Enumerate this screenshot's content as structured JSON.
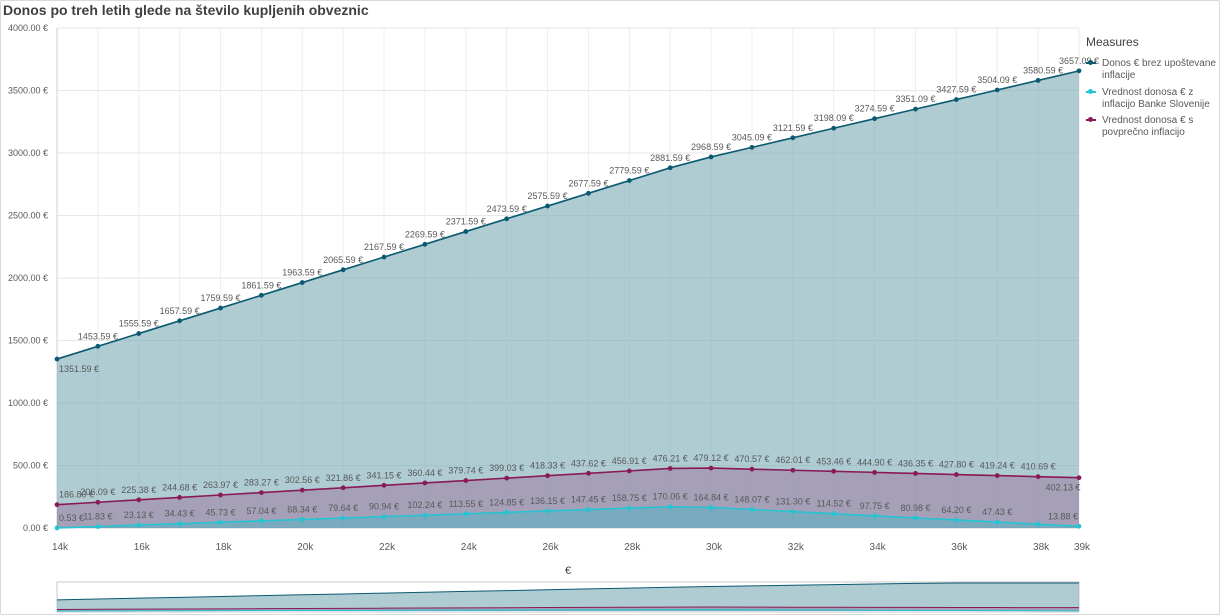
{
  "title": "Donos po treh letih glede na število kupljenih obveznic",
  "legend": {
    "title": "Measures",
    "items": [
      {
        "label": "Donos € brez upoštevane inflacije",
        "color": "#0b5a72"
      },
      {
        "label": "Vrednost donosa € z inflacijo Banke Slovenije",
        "color": "#26c4d3"
      },
      {
        "label": "Vrednost donosa € s povprečno inflacijo",
        "color": "#8a1a55"
      }
    ]
  },
  "chart_data": {
    "type": "area",
    "title": "Donos po treh letih glede na število kupljenih obveznic",
    "xlabel": "€",
    "ylabel": "",
    "xlim": [
      14000,
      39000
    ],
    "ylim": [
      0,
      4000
    ],
    "x_tick_labels": [
      "14k",
      "16k",
      "18k",
      "20k",
      "22k",
      "24k",
      "26k",
      "28k",
      "30k",
      "32k",
      "34k",
      "36k",
      "38k",
      "39k"
    ],
    "y_tick_labels": [
      "0.00 €",
      "500.00 €",
      "1000.00 €",
      "1500.00 €",
      "2000.00 €",
      "2500.00 €",
      "3000.00 €",
      "3500.00 €",
      "4000.00 €"
    ],
    "grid": true,
    "legend_position": "right",
    "x": [
      14000,
      15000,
      16000,
      17000,
      18000,
      19000,
      20000,
      21000,
      22000,
      23000,
      24000,
      25000,
      26000,
      27000,
      28000,
      29000,
      30000,
      31000,
      32000,
      33000,
      34000,
      35000,
      36000,
      37000,
      38000,
      39000
    ],
    "series": [
      {
        "name": "Donos € brez upoštevane inflacije",
        "color": "#0b5a72",
        "values": [
          1351.59,
          1453.59,
          1555.59,
          1657.59,
          1759.59,
          1861.59,
          1963.59,
          2065.59,
          2167.59,
          2269.59,
          2371.59,
          2473.59,
          2575.59,
          2677.59,
          2779.59,
          2881.59,
          2968.59,
          3045.09,
          3121.59,
          3198.09,
          3274.59,
          3351.09,
          3427.59,
          3504.09,
          3580.59,
          3657.09
        ],
        "labels": [
          "1351.59 €",
          "1453.59 €",
          "1555.59 €",
          "1657.59 €",
          "1759.59 €",
          "1861.59 €",
          "1963.59 €",
          "2065.59 €",
          "2167.59 €",
          "2269.59 €",
          "2371.59 €",
          "2473.59 €",
          "2575.59 €",
          "2677.59 €",
          "2779.59 €",
          "2881.59 €",
          "2968.59 €",
          "3045.09 €",
          "3121.59 €",
          "3198.09 €",
          "3274.59 €",
          "3351.09 €",
          "3427.59 €",
          "3504.09 €",
          "3580.59 €",
          "3657.09 €"
        ]
      },
      {
        "name": "Vrednost donosa € s povprečno inflacijo",
        "color": "#8a1a55",
        "values": [
          186.8,
          206.09,
          225.38,
          244.68,
          263.97,
          283.27,
          302.56,
          321.86,
          341.15,
          360.44,
          379.74,
          399.03,
          418.33,
          437.62,
          456.91,
          476.21,
          479.12,
          470.57,
          462.01,
          453.46,
          444.9,
          436.35,
          427.8,
          419.24,
          410.69,
          402.13
        ],
        "labels": [
          "186.80 €",
          "206.09 €",
          "225.38 €",
          "244.68 €",
          "263.97 €",
          "283.27 €",
          "302.56 €",
          "321.86 €",
          "341.15 €",
          "360.44 €",
          "379.74 €",
          "399.03 €",
          "418.33 €",
          "437.62 €",
          "456.91 €",
          "476.21 €",
          "479.12 €",
          "470.57 €",
          "462.01 €",
          "453.46 €",
          "444.90 €",
          "436.35 €",
          "427.80 €",
          "419.24 €",
          "410.69 €",
          "402.13 €"
        ]
      },
      {
        "name": "Vrednost donosa € z inflacijo Banke Slovenije",
        "color": "#26c4d3",
        "values": [
          0.53,
          11.83,
          23.13,
          34.43,
          45.73,
          57.04,
          68.34,
          79.64,
          90.94,
          102.24,
          113.55,
          124.85,
          136.15,
          147.45,
          158.75,
          170.06,
          164.84,
          148.07,
          131.3,
          114.52,
          97.75,
          80.98,
          64.2,
          47.43,
          30.66,
          13.88
        ],
        "labels": [
          "0.53 €",
          "11.83 €",
          "23.13 €",
          "34.43 €",
          "45.73 €",
          "57.04 €",
          "68.34 €",
          "79.64 €",
          "90.94 €",
          "102.24 €",
          "113.55 €",
          "124.85 €",
          "136.15 €",
          "147.45 €",
          "158.75 €",
          "170.06 €",
          "164.84 €",
          "148.07 €",
          "131.30 €",
          "114.52 €",
          "97.75 €",
          "80.98 €",
          "64.20 €",
          "47.43 €",
          "",
          "13.88 €"
        ]
      }
    ]
  }
}
